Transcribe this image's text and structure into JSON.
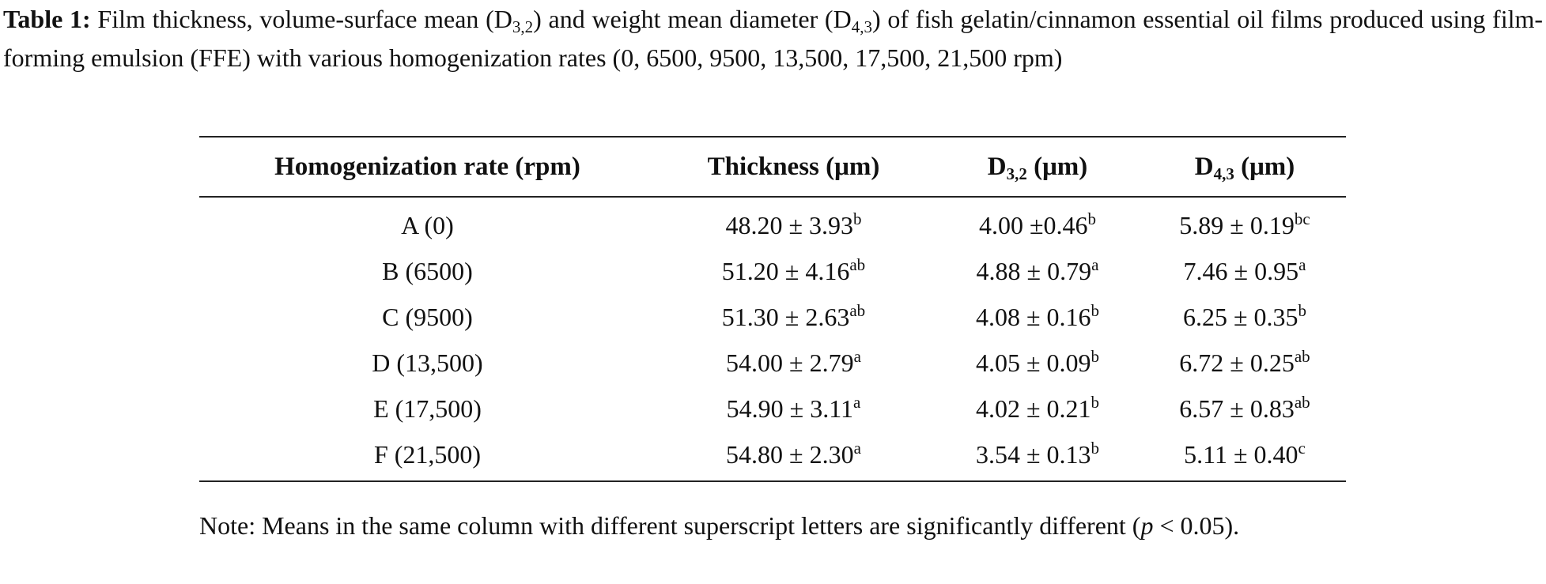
{
  "caption": {
    "label": "Table 1:",
    "segments": [
      "Film thickness, volume-surface mean (D",
      "3,2",
      ") and weight mean diameter (D",
      "4,3",
      ") of fish gelatin/cinnamon essential oil films produced using film-forming emulsion (FFE) with various homogenization rates (0, 6500, 9500, 13,500, 17,500, 21,500 rpm)"
    ]
  },
  "table": {
    "headers": [
      {
        "text": "Homogenization rate (rpm)"
      },
      {
        "text": "Thickness (μm)"
      },
      {
        "text": "D",
        "sub": "3,2",
        "unit": "(μm)"
      },
      {
        "text": "D",
        "sub": "4,3",
        "unit": "(μm)"
      }
    ],
    "rows": [
      [
        "A (0)",
        {
          "value": "48.20 ± 3.93",
          "sup": "b"
        },
        {
          "value": "4.00 ±0.46",
          "sup": "b"
        },
        {
          "value": "5.89 ± 0.19",
          "sup": "bc"
        }
      ],
      [
        "B (6500)",
        {
          "value": "51.20 ± 4.16",
          "sup": "ab"
        },
        {
          "value": "4.88 ± 0.79",
          "sup": "a"
        },
        {
          "value": "7.46 ± 0.95",
          "sup": "a"
        }
      ],
      [
        "C (9500)",
        {
          "value": "51.30 ± 2.63",
          "sup": "ab"
        },
        {
          "value": "4.08 ± 0.16",
          "sup": "b"
        },
        {
          "value": "6.25 ± 0.35",
          "sup": "b"
        }
      ],
      [
        "D (13,500)",
        {
          "value": "54.00 ± 2.79",
          "sup": "a"
        },
        {
          "value": "4.05 ± 0.09",
          "sup": "b"
        },
        {
          "value": "6.72 ± 0.25",
          "sup": "ab"
        }
      ],
      [
        "E (17,500)",
        {
          "value": "54.90 ± 3.11",
          "sup": "a"
        },
        {
          "value": "4.02 ± 0.21",
          "sup": "b"
        },
        {
          "value": "6.57 ± 0.83",
          "sup": "ab"
        }
      ],
      [
        "F (21,500)",
        {
          "value": "54.80 ± 2.30",
          "sup": "a"
        },
        {
          "value": "3.54 ± 0.13",
          "sup": "b"
        },
        {
          "value": "5.11 ± 0.40",
          "sup": "c"
        }
      ]
    ]
  },
  "note": {
    "segments": [
      "Note: Means in the same column with different superscript letters are significantly different (",
      "p",
      " < 0.05)."
    ]
  }
}
